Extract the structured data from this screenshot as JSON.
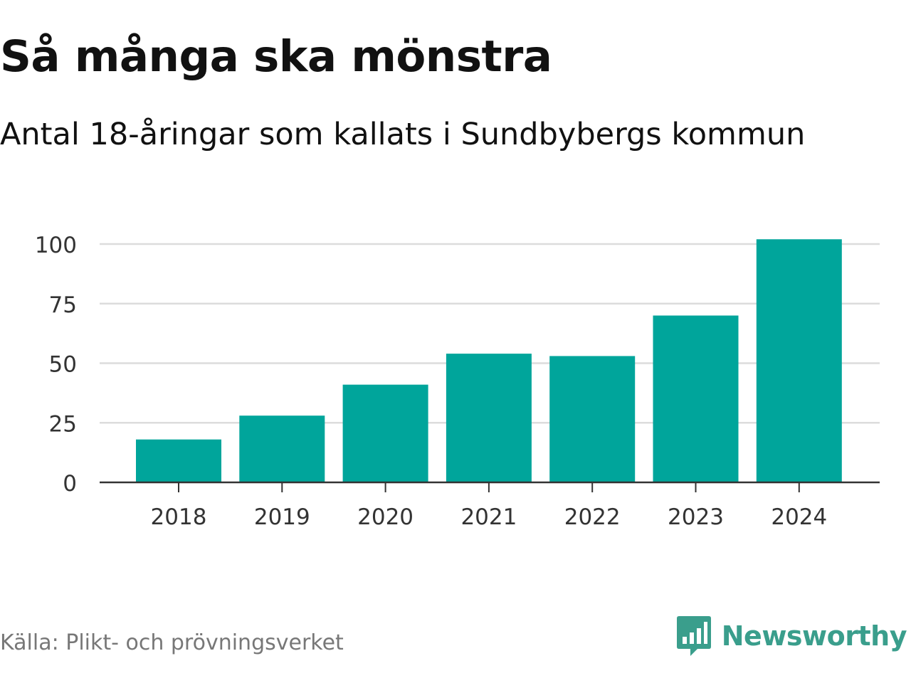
{
  "header": {
    "title": "Så många ska mönstra",
    "subtitle": "Antal 18-åringar som kallats i Sundbybergs kommun"
  },
  "footer": {
    "source": "Källa: Plikt- och prövningsverket",
    "brand": "Newsworthy",
    "brand_icon": "bar-chart-speech-bubble-icon"
  },
  "colors": {
    "bar": "#00a59b",
    "grid": "#dcdcdc",
    "axis": "#333333",
    "brand": "#3a9e8c"
  },
  "chart_data": {
    "type": "bar",
    "title": "Så många ska mönstra",
    "subtitle": "Antal 18-åringar som kallats i Sundbybergs kommun",
    "xlabel": "",
    "ylabel": "",
    "categories": [
      "2018",
      "2019",
      "2020",
      "2021",
      "2022",
      "2023",
      "2024"
    ],
    "values": [
      18,
      28,
      41,
      54,
      53,
      70,
      102
    ],
    "ylim": [
      0,
      100
    ],
    "yticks": [
      0,
      25,
      50,
      75,
      100
    ],
    "grid": true,
    "legend": "none"
  }
}
